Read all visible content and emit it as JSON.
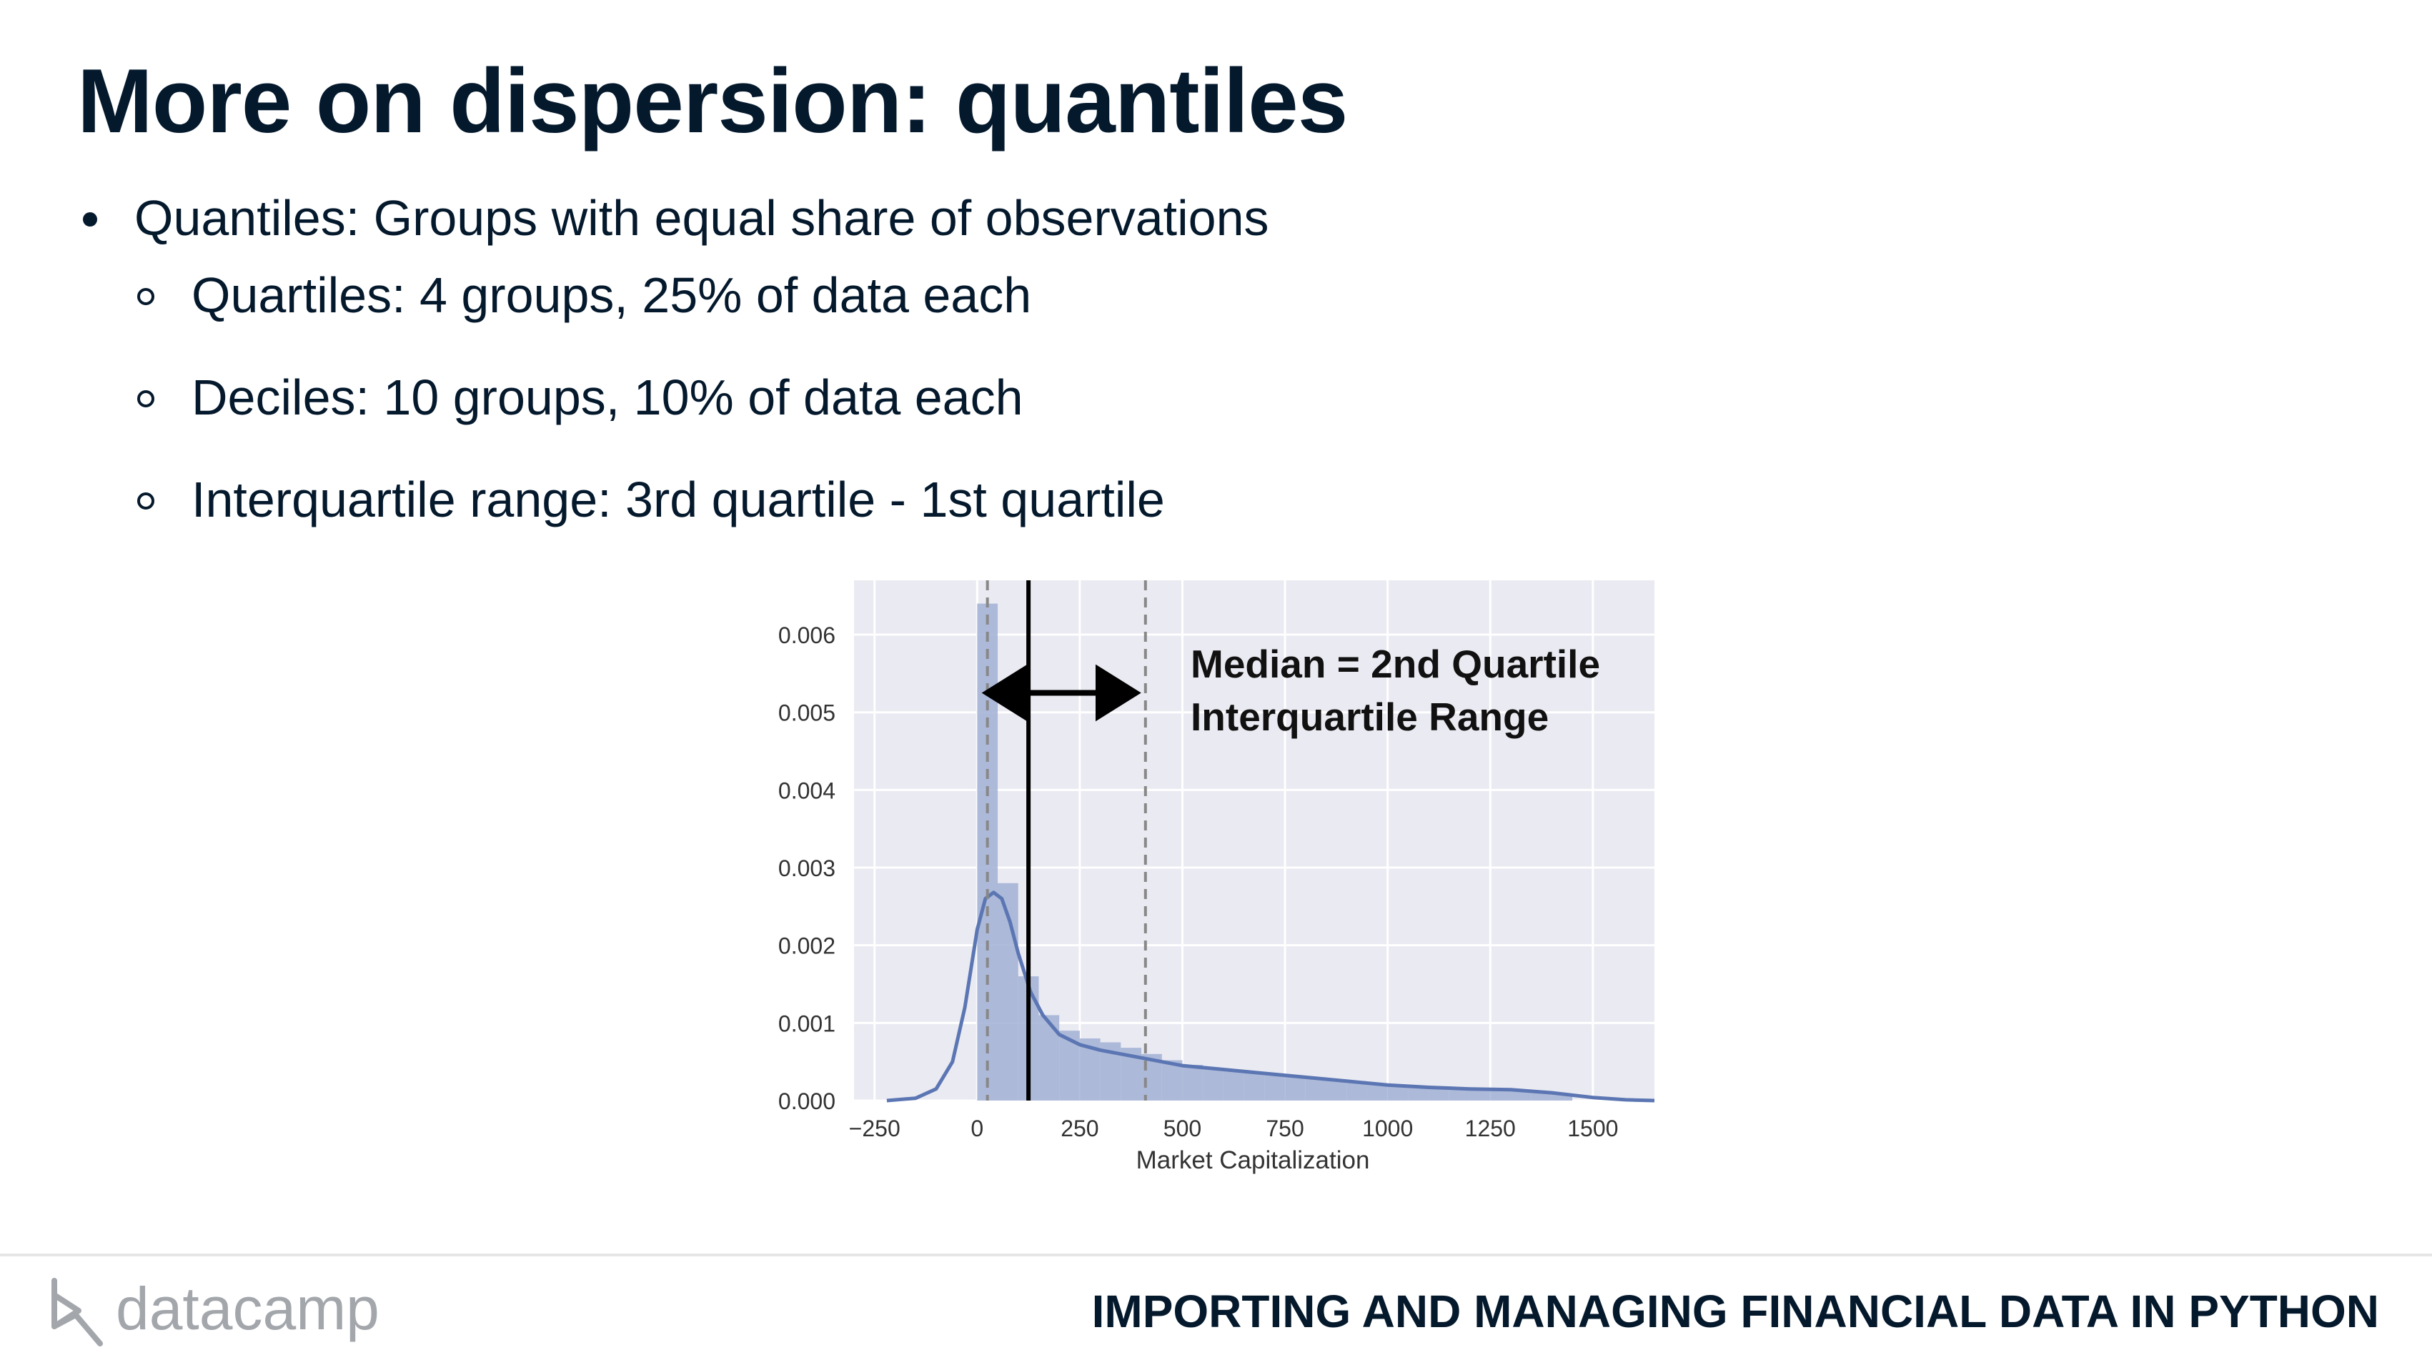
{
  "title": "More on dispersion: quantiles",
  "bullets": {
    "main": "Quantiles: Groups with equal share of observations",
    "sub": [
      "Quartiles: 4 groups, 25% of data each",
      "Deciles: 10 groups, 10% of data each",
      "Interquartile range: 3rd quartile - 1st quartile"
    ]
  },
  "chart_data": {
    "type": "bar",
    "xlabel": "Market Capitalization",
    "ylabel": "",
    "xlim": [
      -300,
      1650
    ],
    "ylim": [
      0,
      0.0067
    ],
    "x_ticks": [
      -250,
      0,
      250,
      500,
      750,
      1000,
      1250,
      1500
    ],
    "x_tick_labels": [
      "−250",
      "0",
      "250",
      "500",
      "750",
      "1000",
      "1250",
      "1500"
    ],
    "y_ticks": [
      0,
      0.001,
      0.002,
      0.003,
      0.004,
      0.005,
      0.006
    ],
    "y_tick_labels": [
      "0.000",
      "0.001",
      "0.002",
      "0.003",
      "0.004",
      "0.005",
      "0.006"
    ],
    "grid": true,
    "histogram": {
      "bin_edges": [
        0,
        50,
        100,
        150,
        200,
        250,
        300,
        350,
        400,
        450,
        500,
        550,
        600,
        650,
        700,
        750,
        800,
        850,
        900,
        950,
        1000,
        1050,
        1100,
        1150,
        1200,
        1250,
        1300,
        1350,
        1400,
        1450
      ],
      "density": [
        0.0064,
        0.0028,
        0.0016,
        0.0011,
        0.0009,
        0.0008,
        0.00075,
        0.00068,
        0.0006,
        0.00052,
        0.00046,
        0.00042,
        0.00039,
        0.00036,
        0.00034,
        0.00032,
        0.0003,
        0.00027,
        0.00025,
        0.00022,
        0.0002,
        0.00019,
        0.00018,
        0.00017,
        0.00016,
        0.00015,
        0.00013,
        0.00011,
        9e-05
      ]
    },
    "kde": {
      "x": [
        -220,
        -150,
        -100,
        -60,
        -30,
        0,
        20,
        40,
        60,
        80,
        100,
        130,
        160,
        200,
        250,
        300,
        350,
        400,
        500,
        600,
        700,
        800,
        900,
        1000,
        1100,
        1200,
        1300,
        1400,
        1500,
        1580,
        1650
      ],
      "y": [
        0,
        3e-05,
        0.00015,
        0.0005,
        0.0012,
        0.0022,
        0.0026,
        0.00268,
        0.0026,
        0.0023,
        0.0019,
        0.0014,
        0.0011,
        0.00085,
        0.00072,
        0.00065,
        0.0006,
        0.00055,
        0.00045,
        0.0004,
        0.00035,
        0.0003,
        0.00025,
        0.0002,
        0.00017,
        0.00015,
        0.00014,
        0.0001,
        4e-05,
        1e-05,
        0
      ]
    },
    "lines": {
      "q1": 25,
      "median": 125,
      "q3": 410
    },
    "annotations": [
      "Median = 2nd Quartile",
      "Interquartile Range"
    ],
    "colors": {
      "background": "#eaeaf2",
      "bar": "#a5b4d6",
      "kde": "#5b76b3",
      "median": "#000000",
      "quartile": "#888888"
    }
  },
  "footer": {
    "logo_text": "datacamp",
    "course": "IMPORTING AND MANAGING FINANCIAL DATA IN PYTHON"
  }
}
